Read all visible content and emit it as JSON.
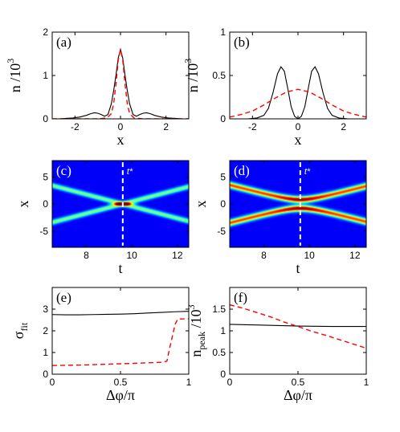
{
  "colors": {
    "solid": "#000000",
    "dashed": "#ff0000",
    "dash_white": "#ffffff"
  },
  "chart_data": [
    {
      "type": "line",
      "panel_label": "(a)",
      "xlabel": "x",
      "ylabel": "n /10",
      "ylabel_sup": "3",
      "xlim": [
        -3,
        3
      ],
      "ylim": [
        0,
        2
      ],
      "xticks": [
        -2,
        0,
        2
      ],
      "xtick_labels": [
        "-2",
        "0",
        "2"
      ],
      "yticks": [
        0,
        1,
        2
      ],
      "ytick_labels": [
        "0",
        "1",
        "2"
      ],
      "series": [
        {
          "style": "solid",
          "x": [
            -3,
            -2.7,
            -2.4,
            -2.1,
            -1.8,
            -1.5,
            -1.3,
            -1.15,
            -1.0,
            -0.85,
            -0.7,
            -0.55,
            -0.4,
            -0.3,
            -0.2,
            -0.1,
            0,
            0.1,
            0.2,
            0.3,
            0.4,
            0.55,
            0.7,
            0.85,
            1.0,
            1.15,
            1.3,
            1.5,
            1.8,
            2.1,
            2.4,
            2.7,
            3
          ],
          "y": [
            0.0,
            0.0,
            0.01,
            0.02,
            0.04,
            0.08,
            0.12,
            0.14,
            0.13,
            0.1,
            0.06,
            0.1,
            0.35,
            0.65,
            1.0,
            1.4,
            1.6,
            1.4,
            1.0,
            0.65,
            0.35,
            0.1,
            0.06,
            0.1,
            0.13,
            0.14,
            0.12,
            0.08,
            0.04,
            0.02,
            0.01,
            0.0,
            0.0
          ]
        },
        {
          "style": "dashed",
          "x": [
            -3,
            -1.0,
            -0.6,
            -0.4,
            -0.3,
            -0.2,
            -0.1,
            0,
            0.1,
            0.2,
            0.3,
            0.4,
            0.6,
            1.0,
            3
          ],
          "y": [
            0,
            0,
            0.02,
            0.12,
            0.35,
            0.8,
            1.35,
            1.6,
            1.35,
            0.8,
            0.35,
            0.12,
            0.02,
            0,
            0
          ]
        }
      ]
    },
    {
      "type": "line",
      "panel_label": "(b)",
      "xlabel": "x",
      "ylabel": "n /10",
      "ylabel_sup": "3",
      "xlim": [
        -3,
        3
      ],
      "ylim": [
        0,
        1
      ],
      "xticks": [
        -2,
        0,
        2
      ],
      "xtick_labels": [
        "-2",
        "0",
        "2"
      ],
      "yticks": [
        0,
        0.5,
        1
      ],
      "ytick_labels": [
        "0",
        "0.5",
        "1"
      ],
      "series": [
        {
          "style": "solid",
          "x": [
            -3,
            -2.2,
            -1.8,
            -1.5,
            -1.3,
            -1.1,
            -0.9,
            -0.75,
            -0.6,
            -0.45,
            -0.3,
            -0.15,
            0,
            0.15,
            0.3,
            0.45,
            0.6,
            0.75,
            0.9,
            1.1,
            1.3,
            1.5,
            1.8,
            2.2,
            3
          ],
          "y": [
            0,
            0,
            0.01,
            0.04,
            0.12,
            0.3,
            0.52,
            0.6,
            0.55,
            0.35,
            0.14,
            0.03,
            0.0,
            0.03,
            0.14,
            0.35,
            0.55,
            0.6,
            0.52,
            0.3,
            0.12,
            0.04,
            0.01,
            0,
            0
          ]
        },
        {
          "style": "dashed",
          "x": [
            -3,
            -2.5,
            -2.0,
            -1.5,
            -1.0,
            -0.5,
            0,
            0.5,
            1.0,
            1.5,
            2.0,
            2.5,
            3
          ],
          "y": [
            0.02,
            0.05,
            0.09,
            0.16,
            0.24,
            0.31,
            0.34,
            0.31,
            0.24,
            0.16,
            0.09,
            0.05,
            0.02
          ]
        }
      ]
    },
    {
      "type": "heatmap",
      "panel_label": "(c)",
      "xlabel": "t",
      "ylabel": "x",
      "marker_label": "t*",
      "marker_t": 9.6,
      "xlim": [
        6.5,
        12.5
      ],
      "ylim": [
        -8,
        8
      ],
      "xticks": [
        8,
        10,
        12
      ],
      "xtick_labels": [
        "8",
        "10",
        "12"
      ],
      "yticks": [
        -5,
        0,
        5
      ],
      "ytick_labels": [
        "-5",
        "0",
        "5"
      ],
      "crossing_t": 9.6,
      "slope": 1.1,
      "intensity": 0.45,
      "center_peak": 1.0
    },
    {
      "type": "heatmap",
      "panel_label": "(d)",
      "xlabel": "t",
      "ylabel": "x",
      "marker_label": "t*",
      "marker_t": 9.6,
      "xlim": [
        6.5,
        12.5
      ],
      "ylim": [
        -8,
        8
      ],
      "xticks": [
        8,
        10,
        12
      ],
      "xtick_labels": [
        "8",
        "10",
        "12"
      ],
      "yticks": [
        -5,
        0,
        5
      ],
      "ytick_labels": [
        "-5",
        "0",
        "5"
      ],
      "crossing_t": 9.6,
      "slope": 1.1,
      "min_gap": 0.8,
      "intensity": 0.8
    },
    {
      "type": "line",
      "panel_label": "(e)",
      "xlabel": "Δφ/π",
      "ylabel": "σ",
      "ylabel_sub": "fit",
      "xlim": [
        0,
        1
      ],
      "ylim": [
        0,
        4
      ],
      "xticks": [
        0,
        0.5,
        1
      ],
      "xtick_labels": [
        "0",
        "0.5",
        "1"
      ],
      "yticks": [
        0,
        1,
        2,
        3
      ],
      "ytick_labels": [
        "0",
        "1",
        "2",
        "3"
      ],
      "series": [
        {
          "style": "solid",
          "x": [
            0,
            0.1,
            0.2,
            0.3,
            0.4,
            0.5,
            0.6,
            0.7,
            0.8,
            0.9,
            1.0
          ],
          "y": [
            2.75,
            2.74,
            2.74,
            2.75,
            2.76,
            2.77,
            2.79,
            2.82,
            2.85,
            2.88,
            2.9
          ]
        },
        {
          "style": "dashed",
          "x": [
            0,
            0.2,
            0.4,
            0.6,
            0.8,
            0.84,
            0.86,
            0.9,
            0.92,
            1.0
          ],
          "y": [
            0.4,
            0.42,
            0.46,
            0.5,
            0.55,
            0.6,
            1.2,
            2.3,
            2.55,
            2.55
          ]
        }
      ]
    },
    {
      "type": "line",
      "panel_label": "(f)",
      "xlabel": "Δφ/π",
      "ylabel": "n",
      "ylabel_sub": "peak",
      "ylabel_tail": " /10",
      "ylabel_sup": "3",
      "xlim": [
        0,
        1
      ],
      "ylim": [
        0,
        2
      ],
      "xticks": [
        0,
        0.5,
        1
      ],
      "xtick_labels": [
        "0",
        "0.5",
        "1"
      ],
      "yticks": [
        0,
        0.5,
        1,
        1.5
      ],
      "ytick_labels": [
        "0",
        "0.5",
        "1",
        "1.5"
      ],
      "series": [
        {
          "style": "solid",
          "x": [
            0,
            0.25,
            0.5,
            0.75,
            1.0
          ],
          "y": [
            1.15,
            1.13,
            1.11,
            1.1,
            1.1
          ]
        },
        {
          "style": "dashed",
          "x": [
            0,
            0.1,
            0.2,
            0.3,
            0.4,
            0.5,
            0.6,
            0.7,
            0.8,
            0.9,
            1.0
          ],
          "y": [
            1.6,
            1.52,
            1.42,
            1.32,
            1.2,
            1.1,
            0.99,
            0.9,
            0.8,
            0.7,
            0.6
          ]
        }
      ]
    }
  ]
}
